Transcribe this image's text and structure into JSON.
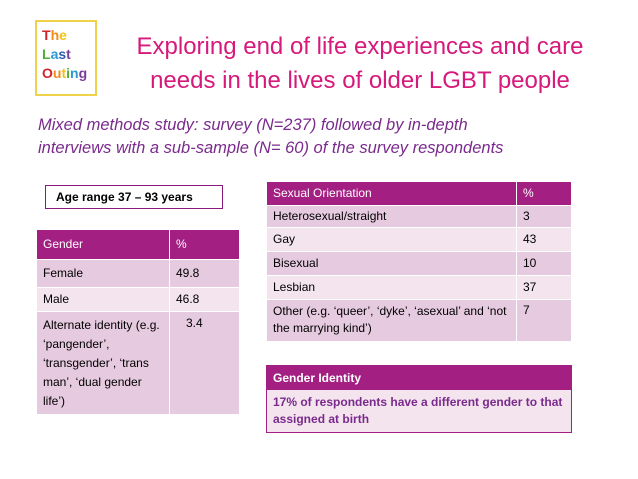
{
  "logo": {
    "line1": [
      "T",
      "h",
      "e"
    ],
    "line2": [
      "L",
      "a",
      "s",
      "t"
    ],
    "line3": [
      "O",
      "u",
      "t",
      "i",
      "n",
      "g"
    ]
  },
  "title": {
    "line1": "Exploring end of life experiences and care",
    "line2": "needs in the lives of older LGBT people"
  },
  "subtitle": {
    "line1": "Mixed methods study: survey (N=237) followed by in-depth",
    "line2": "interviews with a sub-sample (N= 60) of the survey respondents"
  },
  "age_range": "Age range 37 – 93 years",
  "gender_table": {
    "headers": [
      "Gender",
      "%"
    ],
    "rows": [
      [
        "Female",
        "49.8"
      ],
      [
        "Male",
        "46.8"
      ],
      [
        "Alternate identity (e.g. ‘pangender’, ‘transgender’, ‘trans man’, ‘dual gender life’)",
        "3.4"
      ]
    ]
  },
  "sexual_table": {
    "headers": [
      "Sexual Orientation",
      "%"
    ],
    "rows": [
      [
        "Heterosexual/straight",
        "3"
      ],
      [
        "Gay",
        "43"
      ],
      [
        "Bisexual",
        "10"
      ],
      [
        "Lesbian",
        "37"
      ],
      [
        "Other (e.g. ‘queer’, ‘dyke’, ‘asexual’ and ‘not the marrying kind’)",
        "7"
      ]
    ]
  },
  "gender_identity": {
    "header": "Gender Identity",
    "body": "17% of respondents have a different gender to that assigned at birth"
  },
  "colors": {
    "accent": "#a31f82",
    "title": "#d6197a",
    "subtitle": "#7a2a8c"
  }
}
